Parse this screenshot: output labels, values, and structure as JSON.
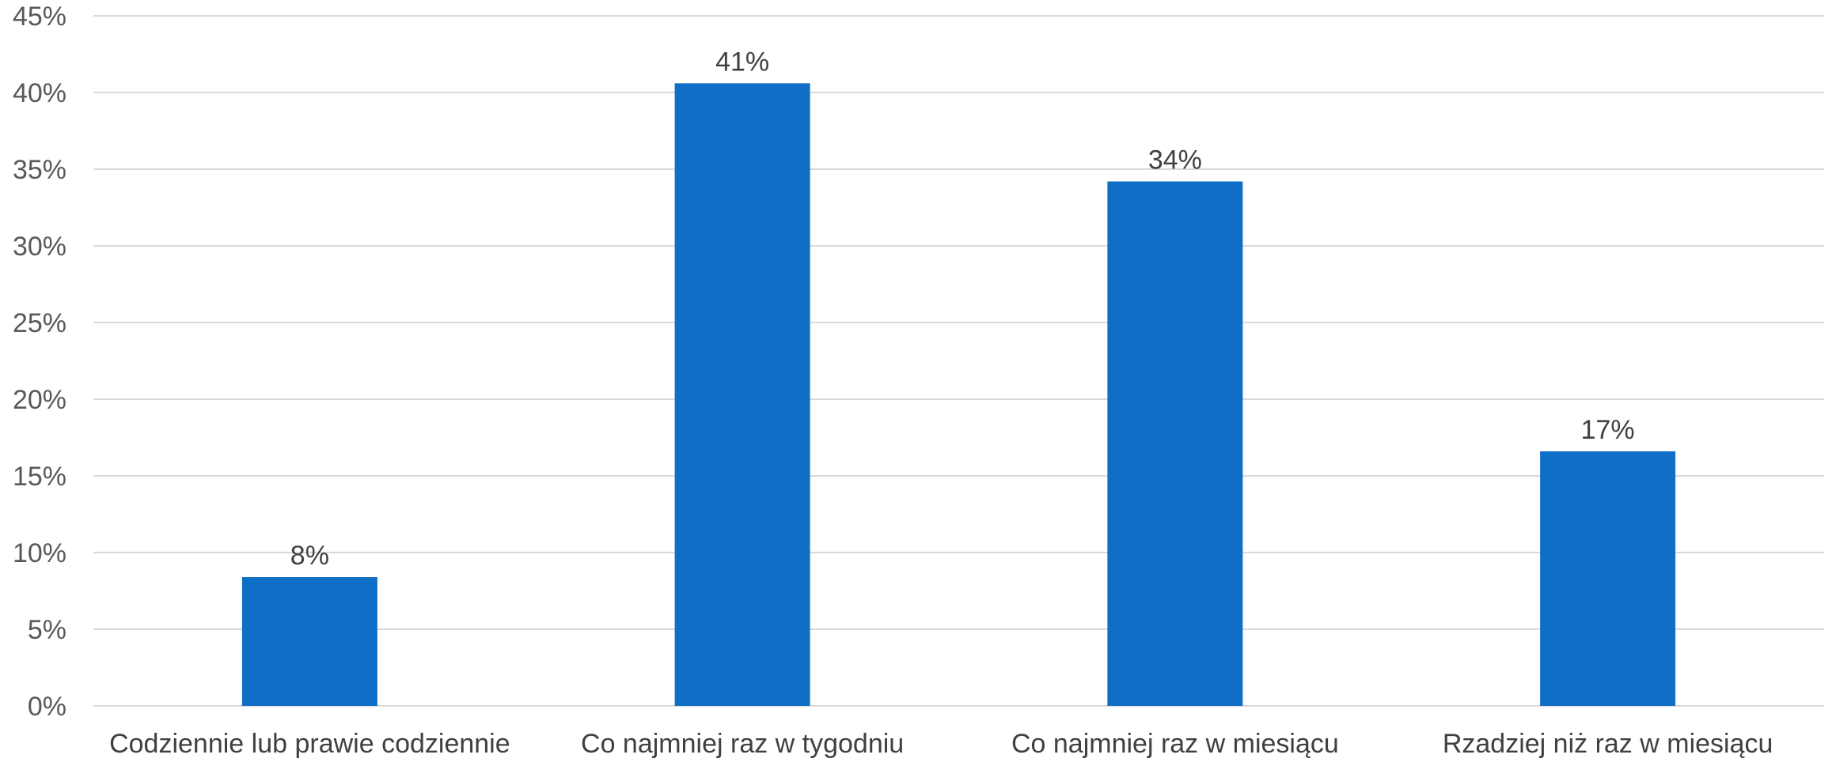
{
  "chart_data": {
    "type": "bar",
    "categories": [
      "Codziennie lub prawie codziennie",
      "Co najmniej raz w tygodniu",
      "Co najmniej raz w miesiącu",
      "Rzadziej niż raz w miesiącu"
    ],
    "values": [
      8.4,
      40.6,
      34.2,
      16.6
    ],
    "data_labels": [
      "8%",
      "41%",
      "34%",
      "17%"
    ],
    "ylim": [
      0,
      45
    ],
    "yticks": [
      0,
      5,
      10,
      15,
      20,
      25,
      30,
      35,
      40,
      45
    ],
    "ytick_labels": [
      "0%",
      "5%",
      "10%",
      "15%",
      "20%",
      "25%",
      "30%",
      "35%",
      "40%",
      "45%"
    ],
    "grid": true,
    "legend": "none",
    "bar_color": "#0f6fc6"
  }
}
